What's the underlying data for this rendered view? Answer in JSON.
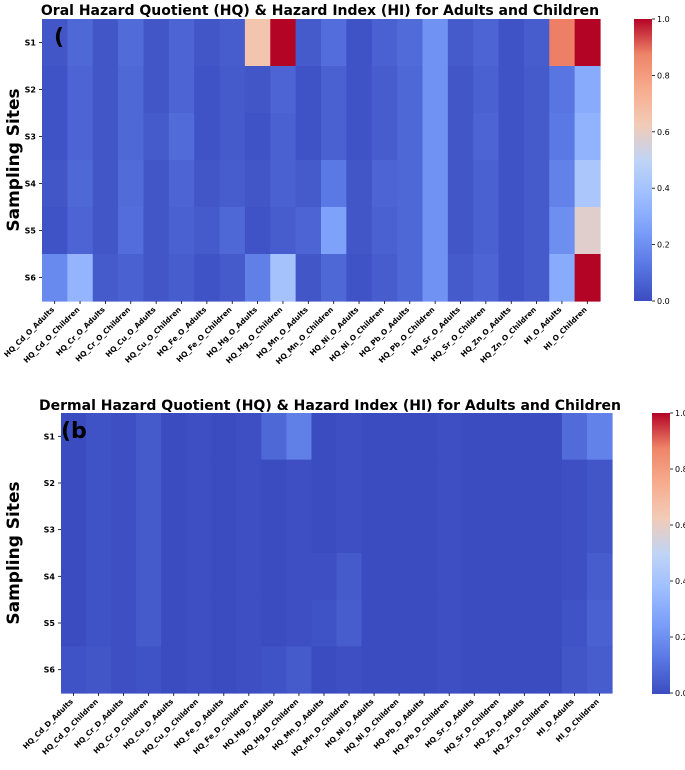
{
  "chart_data": [
    {
      "id": "oral",
      "type": "heatmap",
      "panel_label": "(",
      "title": "Oral Hazard Quotient (HQ) & Hazard Index (HI) for Adults and Children",
      "ylabel": "Sampling Sites",
      "xlabel": "",
      "rows": [
        "S1",
        "S2",
        "S3",
        "S4",
        "S5",
        "S6"
      ],
      "columns": [
        "HQ_Cd_O_Adults",
        "HQ_Cd_O_Children",
        "HQ_Cr_O_Adults",
        "HQ_Cr_O_Children",
        "HQ_Cu_O_Adults",
        "HQ_Cu_O_Children",
        "HQ_Fe_O_Adults",
        "HQ_Fe_O_Children",
        "HQ_Hg_O_Adults",
        "HQ_Hg_O_Children",
        "HQ_Mn_O_Adults",
        "HQ_Mn_O_Children",
        "HQ_Ni_O_Adults",
        "HQ_Ni_O_Children",
        "HQ_Pb_O_Adults",
        "HQ_Pb_O_Children",
        "HQ_Sr_O_Adults",
        "HQ_Sr_O_Children",
        "HQ_Zn_O_Adults",
        "HQ_Zn_O_Children",
        "HI_O_Adults",
        "HI_O_Children"
      ],
      "values": [
        [
          0.03,
          0.08,
          0.03,
          0.09,
          0.03,
          0.07,
          0.03,
          0.05,
          0.65,
          1.0,
          0.04,
          0.1,
          0.02,
          0.06,
          0.09,
          0.21,
          0.04,
          0.07,
          0.02,
          0.05,
          0.88,
          1.0
        ],
        [
          0.02,
          0.07,
          0.03,
          0.08,
          0.03,
          0.07,
          0.02,
          0.04,
          0.03,
          0.07,
          0.02,
          0.06,
          0.02,
          0.05,
          0.08,
          0.21,
          0.03,
          0.06,
          0.02,
          0.04,
          0.12,
          0.3
        ],
        [
          0.02,
          0.07,
          0.03,
          0.08,
          0.04,
          0.09,
          0.02,
          0.04,
          0.02,
          0.06,
          0.02,
          0.06,
          0.02,
          0.05,
          0.08,
          0.21,
          0.03,
          0.07,
          0.02,
          0.04,
          0.13,
          0.33
        ],
        [
          0.03,
          0.08,
          0.03,
          0.09,
          0.03,
          0.07,
          0.03,
          0.05,
          0.03,
          0.06,
          0.04,
          0.13,
          0.03,
          0.07,
          0.08,
          0.21,
          0.03,
          0.06,
          0.02,
          0.04,
          0.16,
          0.42
        ],
        [
          0.02,
          0.07,
          0.03,
          0.1,
          0.03,
          0.06,
          0.04,
          0.08,
          0.02,
          0.05,
          0.07,
          0.26,
          0.03,
          0.06,
          0.08,
          0.21,
          0.03,
          0.06,
          0.02,
          0.04,
          0.2,
          0.58
        ],
        [
          0.18,
          0.34,
          0.04,
          0.06,
          0.03,
          0.05,
          0.02,
          0.04,
          0.15,
          0.4,
          0.03,
          0.08,
          0.02,
          0.05,
          0.08,
          0.21,
          0.04,
          0.07,
          0.02,
          0.04,
          0.3,
          1.0
        ]
      ],
      "colorbar": {
        "min": 0.0,
        "max": 1.0,
        "ticks": [
          "0.0",
          "0.2",
          "0.4",
          "0.6",
          "0.8",
          "1.0"
        ],
        "colormap": "coolwarm"
      }
    },
    {
      "id": "dermal",
      "type": "heatmap",
      "panel_label": "(b",
      "title": "Dermal Hazard Quotient (HQ) & Hazard Index (HI) for Adults and Children",
      "ylabel": "Sampling Sites",
      "xlabel": "",
      "rows": [
        "S1",
        "S2",
        "S3",
        "S4",
        "S5",
        "S6"
      ],
      "columns": [
        "HQ_Cd_D_Adults",
        "HQ_Cd_D_Children",
        "HQ_Cr_D_Adults",
        "HQ_Cr_D_Children",
        "HQ_Cu_D_Adults",
        "HQ_Cu_D_Children",
        "HQ_Fe_D_Adults",
        "HQ_Fe_D_Children",
        "HQ_Hg_D_Adults",
        "HQ_Hg_D_Children",
        "HQ_Mn_D_Adults",
        "HQ_Mn_D_Children",
        "HQ_Ni_D_Adults",
        "HQ_Ni_D_Children",
        "HQ_Pb_D_Adults",
        "HQ_Pb_D_Children",
        "HQ_Sr_D_Adults",
        "HQ_Sr_D_Children",
        "HQ_Zn_D_Adults",
        "HQ_Zn_D_Children",
        "HI_D_Adults",
        "HI_D_Children"
      ],
      "values": [
        [
          0.0,
          0.02,
          0.01,
          0.04,
          0.0,
          0.01,
          0.0,
          0.01,
          0.08,
          0.15,
          0.0,
          0.01,
          0.0,
          0.0,
          0.0,
          0.01,
          0.0,
          0.0,
          0.0,
          0.0,
          0.09,
          0.16
        ],
        [
          0.0,
          0.02,
          0.01,
          0.04,
          0.0,
          0.01,
          0.0,
          0.01,
          0.0,
          0.01,
          0.0,
          0.01,
          0.0,
          0.0,
          0.0,
          0.01,
          0.0,
          0.0,
          0.0,
          0.0,
          0.01,
          0.03
        ],
        [
          0.0,
          0.02,
          0.01,
          0.04,
          0.0,
          0.01,
          0.0,
          0.01,
          0.0,
          0.01,
          0.0,
          0.01,
          0.0,
          0.0,
          0.0,
          0.01,
          0.0,
          0.0,
          0.0,
          0.0,
          0.01,
          0.03
        ],
        [
          0.0,
          0.02,
          0.01,
          0.04,
          0.0,
          0.01,
          0.0,
          0.01,
          0.0,
          0.01,
          0.01,
          0.04,
          0.0,
          0.0,
          0.0,
          0.01,
          0.0,
          0.0,
          0.0,
          0.0,
          0.01,
          0.05
        ],
        [
          0.0,
          0.02,
          0.01,
          0.04,
          0.0,
          0.01,
          0.0,
          0.01,
          0.0,
          0.01,
          0.02,
          0.05,
          0.0,
          0.0,
          0.0,
          0.01,
          0.0,
          0.0,
          0.0,
          0.0,
          0.02,
          0.06
        ],
        [
          0.02,
          0.03,
          0.01,
          0.02,
          0.0,
          0.01,
          0.0,
          0.01,
          0.02,
          0.04,
          0.0,
          0.01,
          0.0,
          0.0,
          0.0,
          0.01,
          0.0,
          0.0,
          0.0,
          0.0,
          0.03,
          0.05
        ]
      ],
      "colorbar": {
        "min": 0.0,
        "max": 1.0,
        "ticks": [
          "0.0",
          "0.2",
          "0.4",
          "0.6",
          "0.8",
          "1.0"
        ],
        "colormap": "coolwarm"
      }
    }
  ]
}
